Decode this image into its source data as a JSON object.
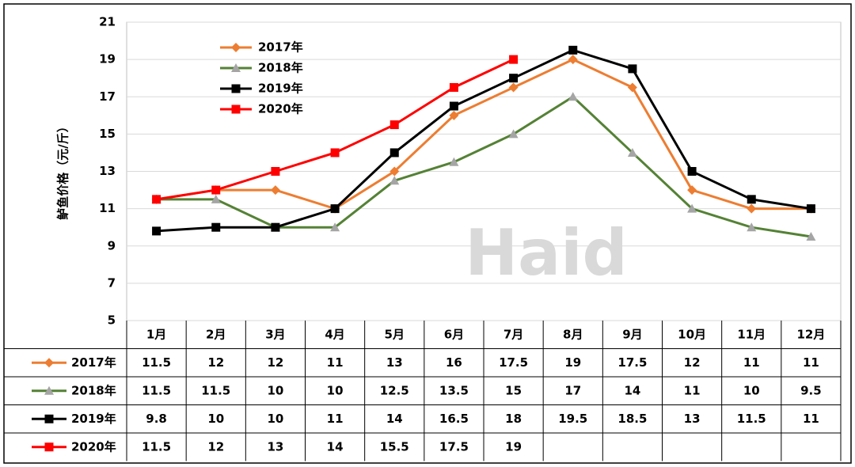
{
  "chart_data": {
    "type": "line",
    "y_label": "鲈鱼价格（元/斤）",
    "watermark": "Haid",
    "categories": [
      "1月",
      "2月",
      "3月",
      "4月",
      "5月",
      "6月",
      "7月",
      "8月",
      "9月",
      "10月",
      "11月",
      "12月"
    ],
    "series": [
      {
        "name": "2017年",
        "color": "#ED7D31",
        "marker": "diamond",
        "values": [
          11.5,
          12,
          12,
          11,
          13,
          16,
          17.5,
          19,
          17.5,
          12,
          11,
          11
        ]
      },
      {
        "name": "2018年",
        "color": "#548235",
        "marker_color": "#A5A5A5",
        "marker": "triangle",
        "values": [
          11.5,
          11.5,
          10,
          10,
          12.5,
          13.5,
          15,
          17,
          14,
          11,
          10,
          9.5
        ]
      },
      {
        "name": "2019年",
        "color": "#000000",
        "marker": "square",
        "values": [
          9.8,
          10,
          10,
          11,
          14,
          16.5,
          18,
          19.5,
          18.5,
          13,
          11.5,
          11
        ]
      },
      {
        "name": "2020年",
        "color": "#FF0000",
        "marker": "square",
        "values": [
          11.5,
          12,
          13,
          14,
          15.5,
          17.5,
          19,
          null,
          null,
          null,
          null,
          null
        ]
      }
    ],
    "ylim": [
      5,
      21
    ],
    "yticks": [
      5,
      7,
      9,
      11,
      13,
      15,
      17,
      19,
      21
    ],
    "grid": true
  }
}
